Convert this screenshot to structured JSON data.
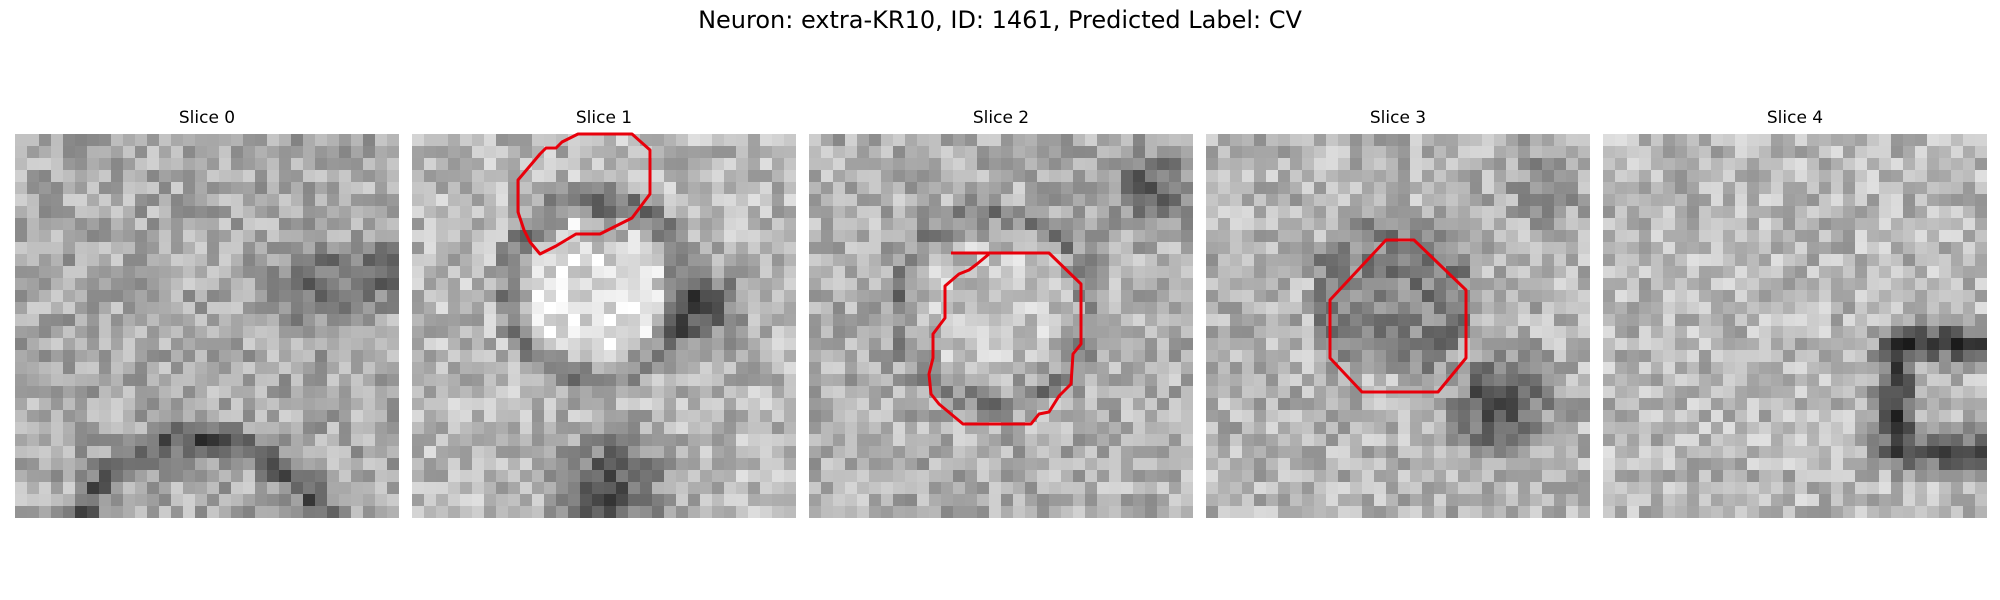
{
  "figure": {
    "title": "Neuron: extra-KR10, ID: 1461, Predicted Label: CV"
  },
  "colors": {
    "contour": "#e8000b",
    "colormap": "grayscale"
  },
  "panels": [
    {
      "title": "Slice 0",
      "has_contour": false
    },
    {
      "title": "Slice 1",
      "has_contour": true
    },
    {
      "title": "Slice 2",
      "has_contour": true
    },
    {
      "title": "Slice 3",
      "has_contour": true
    },
    {
      "title": "Slice 4",
      "has_contour": false
    }
  ]
}
